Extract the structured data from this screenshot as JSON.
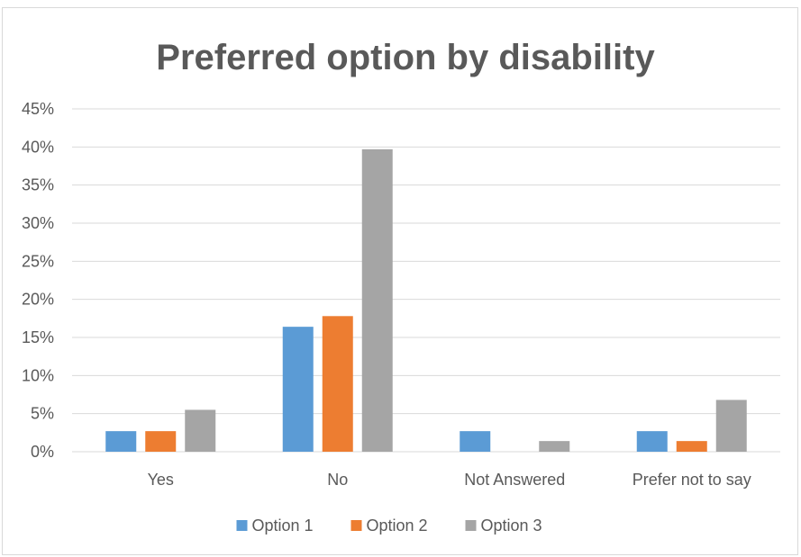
{
  "chart_data": {
    "type": "bar",
    "title": "Preferred option by disability",
    "xlabel": "",
    "ylabel": "",
    "categories": [
      "Yes",
      "No",
      "Not Answered",
      "Prefer not to say"
    ],
    "series": [
      {
        "name": "Option 1",
        "color": "#5B9BD5",
        "values": [
          2.7,
          16.4,
          2.7,
          2.7
        ]
      },
      {
        "name": "Option 2",
        "color": "#ED7D31",
        "values": [
          2.7,
          17.8,
          0,
          1.4
        ]
      },
      {
        "name": "Option 3",
        "color": "#A5A5A5",
        "values": [
          5.5,
          39.7,
          1.4,
          6.8
        ]
      }
    ],
    "ylim": [
      0,
      45
    ],
    "yticks": [
      0,
      5,
      10,
      15,
      20,
      25,
      30,
      35,
      40,
      45
    ],
    "ytick_labels": [
      "0%",
      "5%",
      "10%",
      "15%",
      "20%",
      "25%",
      "30%",
      "35%",
      "40%",
      "45%"
    ],
    "grid": true,
    "legend_position": "bottom"
  }
}
